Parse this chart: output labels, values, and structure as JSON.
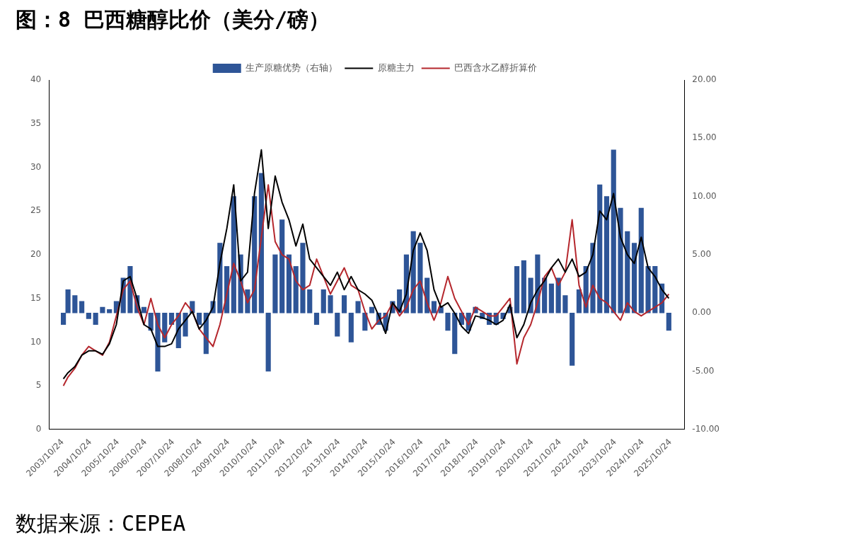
{
  "chart_data": {
    "type": "line",
    "title": "图：8 巴西糖醇比价（美分/磅）",
    "annotations": [
      "数据来源：CEPEA"
    ],
    "x": [
      "2003-11",
      "2004-01",
      "2004-04",
      "2004-07",
      "2004-10",
      "2005-01",
      "2005-04",
      "2005-07",
      "2005-10",
      "2006-01",
      "2006-04",
      "2006-07",
      "2006-10",
      "2007-01",
      "2007-04",
      "2007-07",
      "2007-10",
      "2008-01",
      "2008-04",
      "2008-07",
      "2008-10",
      "2009-01",
      "2009-04",
      "2009-07",
      "2009-10",
      "2010-01",
      "2010-04",
      "2010-07",
      "2010-10",
      "2011-01",
      "2011-04",
      "2011-07",
      "2011-10",
      "2012-01",
      "2012-04",
      "2012-07",
      "2012-10",
      "2013-01",
      "2013-04",
      "2013-07",
      "2013-10",
      "2014-01",
      "2014-04",
      "2014-07",
      "2014-10",
      "2015-01",
      "2015-04",
      "2015-07",
      "2015-10",
      "2016-01",
      "2016-04",
      "2016-07",
      "2016-10",
      "2017-01",
      "2017-04",
      "2017-07",
      "2017-10",
      "2018-01",
      "2018-04",
      "2018-07",
      "2018-10",
      "2019-01",
      "2019-04",
      "2019-07",
      "2019-10",
      "2020-01",
      "2020-04",
      "2020-07",
      "2020-10",
      "2021-01",
      "2021-04",
      "2021-07",
      "2021-10",
      "2022-01",
      "2022-04",
      "2022-07",
      "2022-10",
      "2023-01",
      "2023-04",
      "2023-07",
      "2023-10",
      "2024-01",
      "2024-04",
      "2024-07",
      "2024-10",
      "2025-01",
      "2025-04",
      "2025-07",
      "2025-10"
    ],
    "series": [
      {
        "name": "生产原糖优势（右轴）",
        "type": "bar",
        "axis": "y2",
        "color": "#2e5597",
        "values": [
          -1.0,
          2.0,
          1.5,
          1.0,
          -0.5,
          -1.0,
          0.5,
          0.3,
          1.0,
          3.0,
          4.0,
          1.5,
          0.5,
          -1.5,
          -5.0,
          -2.5,
          -1.0,
          -3.0,
          -2.0,
          1.0,
          -1.0,
          -3.5,
          1.0,
          6.0,
          4.0,
          10.0,
          5.0,
          2.0,
          10.0,
          12.0,
          -5.0,
          5.0,
          8.0,
          5.0,
          4.0,
          6.0,
          2.0,
          -1.0,
          2.0,
          1.5,
          -2.0,
          1.5,
          -2.5,
          1.0,
          -1.5,
          0.5,
          -1.0,
          -1.5,
          1.0,
          2.0,
          5.0,
          7.0,
          6.0,
          3.0,
          1.0,
          0.5,
          -1.5,
          -3.5,
          -1.0,
          -1.5,
          0.5,
          -0.5,
          -1.0,
          -1.0,
          -0.5,
          0.5,
          4.0,
          4.5,
          3.0,
          5.0,
          3.0,
          2.5,
          3.0,
          1.5,
          -4.5,
          2.0,
          4.0,
          6.0,
          11.0,
          10.0,
          14.0,
          9.0,
          7.0,
          6.0,
          9.0,
          4.0,
          4.0,
          2.5,
          -1.5
        ]
      },
      {
        "name": "原糖主力",
        "color": "#000000",
        "values": [
          5.8,
          6.5,
          7.2,
          8.5,
          9.0,
          9.0,
          8.6,
          9.8,
          12.0,
          17.0,
          17.5,
          15.0,
          12.0,
          11.5,
          9.5,
          9.5,
          9.8,
          11.5,
          12.5,
          13.5,
          11.5,
          12.5,
          14.0,
          19.0,
          23.0,
          28.0,
          17.0,
          18.0,
          27.0,
          32.0,
          23.0,
          29.0,
          26.0,
          24.0,
          21.0,
          23.5,
          19.5,
          18.5,
          17.5,
          16.5,
          18.0,
          16.0,
          17.5,
          16.0,
          15.5,
          14.8,
          13.0,
          11.0,
          14.5,
          13.5,
          15.5,
          20.5,
          22.5,
          20.5,
          16.0,
          14.0,
          14.5,
          13.3,
          11.8,
          11.0,
          13.0,
          12.8,
          12.5,
          12.0,
          12.5,
          14.3,
          10.5,
          12.0,
          14.5,
          16.0,
          17.0,
          18.5,
          19.5,
          18.0,
          19.5,
          17.5,
          18.0,
          20.0,
          25.0,
          24.0,
          27.0,
          22.0,
          20.0,
          19.0,
          22.0,
          18.5,
          17.5,
          16.0,
          15.0
        ]
      },
      {
        "name": "巴西含水乙醇折算价",
        "color": "#b5272d",
        "values": [
          5.0,
          6.0,
          7.0,
          8.5,
          9.5,
          9.0,
          8.5,
          10.0,
          13.0,
          16.0,
          17.0,
          14.0,
          12.0,
          15.0,
          12.0,
          10.5,
          12.0,
          13.0,
          14.5,
          13.5,
          11.5,
          10.5,
          9.5,
          12.0,
          15.5,
          19.0,
          17.0,
          14.5,
          16.0,
          22.0,
          28.0,
          21.5,
          20.0,
          19.5,
          17.0,
          16.0,
          16.5,
          19.5,
          17.5,
          15.5,
          17.0,
          18.5,
          16.5,
          16.0,
          13.5,
          11.5,
          12.5,
          13.0,
          14.5,
          13.0,
          14.0,
          16.0,
          17.0,
          14.5,
          12.5,
          14.5,
          17.5,
          15.0,
          13.5,
          12.0,
          14.0,
          13.5,
          13.0,
          13.0,
          14.0,
          15.0,
          7.5,
          10.5,
          12.0,
          14.5,
          17.5,
          18.5,
          16.5,
          18.0,
          24.0,
          16.5,
          14.0,
          16.5,
          15.0,
          14.5,
          13.5,
          12.5,
          14.5,
          13.5,
          13.0,
          13.5,
          14.0,
          14.5,
          15.5
        ]
      }
    ],
    "xlim": [
      "2003-10-24",
      "2025-10-24"
    ],
    "xticks": [
      {
        "value": "2003-10-24",
        "label": "2003/10/24"
      },
      {
        "value": "2004-10-24",
        "label": "2004/10/24"
      },
      {
        "value": "2005-10-24",
        "label": "2005/10/24"
      },
      {
        "value": "2006-10-24",
        "label": "2006/10/24"
      },
      {
        "value": "2007-10-24",
        "label": "2007/10/24"
      },
      {
        "value": "2008-10-24",
        "label": "2008/10/24"
      },
      {
        "value": "2009-10-24",
        "label": "2009/10/24"
      },
      {
        "value": "2010-10-24",
        "label": "2010/10/24"
      },
      {
        "value": "2011-10-24",
        "label": "2011/10/24"
      },
      {
        "value": "2012-10-24",
        "label": "2012/10/24"
      },
      {
        "value": "2013-10-24",
        "label": "2013/10/24"
      },
      {
        "value": "2014-10-24",
        "label": "2014/10/24"
      },
      {
        "value": "2015-10-24",
        "label": "2015/10/24"
      },
      {
        "value": "2016-10-24",
        "label": "2016/10/24"
      },
      {
        "value": "2017-10-24",
        "label": "2017/10/24"
      },
      {
        "value": "2018-10-24",
        "label": "2018/10/24"
      },
      {
        "value": "2019-10-24",
        "label": "2019/10/24"
      },
      {
        "value": "2020-10-24",
        "label": "2020/10/24"
      },
      {
        "value": "2021-10-24",
        "label": "2021/10/24"
      },
      {
        "value": "2022-10-24",
        "label": "2022/10/24"
      },
      {
        "value": "2023-10-24",
        "label": "2023/10/24"
      },
      {
        "value": "2024-10-24",
        "label": "2024/10/24"
      },
      {
        "value": "2025-10-24",
        "label": "2025/10/24"
      }
    ],
    "ylim": [
      0,
      40
    ],
    "yticks": [
      0,
      5,
      10,
      15,
      20,
      25,
      30,
      35,
      40
    ],
    "y2lim": [
      -10,
      20
    ],
    "y2ticks": [
      {
        "value": -10,
        "label": "-10.00"
      },
      {
        "value": -5,
        "label": "-5.00"
      },
      {
        "value": 0,
        "label": "0.00"
      },
      {
        "value": 5,
        "label": "5.00"
      },
      {
        "value": 10,
        "label": "10.00"
      },
      {
        "value": 15,
        "label": "15.00"
      },
      {
        "value": 20,
        "label": "20.00"
      }
    ],
    "legend": "top",
    "grid": false,
    "marker": "none",
    "line_style": "solid"
  }
}
